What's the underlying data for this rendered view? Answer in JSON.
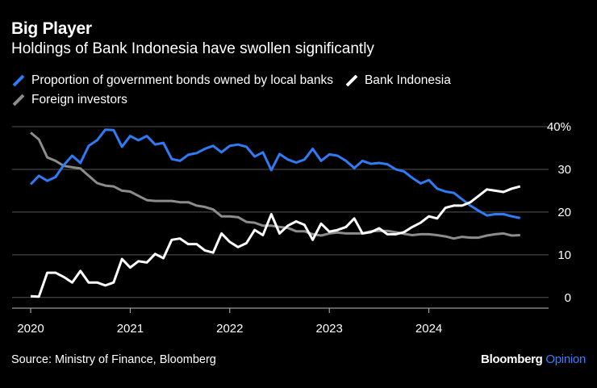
{
  "title": "Big Player",
  "subtitle": "Holdings of Bank Indonesia have swollen significantly",
  "source": "Source: Ministry of Finance, Bloomberg",
  "brand": {
    "name": "Bloomberg",
    "suffix": "Opinion"
  },
  "colors": {
    "local_banks": "#2f7bf5",
    "bank_indonesia": "#ffffff",
    "foreign": "#8c8c8c",
    "grid": "#555555",
    "background": "#000000"
  },
  "chart_data": {
    "type": "line",
    "title": "Big Player",
    "subtitle": "Holdings of Bank Indonesia have swollen significantly",
    "xlabel": "",
    "ylabel": "",
    "x_ticks": [
      "2020",
      "2021",
      "2022",
      "2023",
      "2024"
    ],
    "y_ticks": [
      0,
      10,
      20,
      30,
      40
    ],
    "y_tick_labels": [
      "0",
      "10",
      "20",
      "30",
      "40%"
    ],
    "ylim": [
      -2.5,
      40
    ],
    "xlim": [
      2020.0,
      2025.3
    ],
    "grid": true,
    "legend_placement": "top",
    "x": [
      2020.0,
      2020.083,
      2020.167,
      2020.25,
      2020.333,
      2020.417,
      2020.5,
      2020.583,
      2020.667,
      2020.75,
      2020.833,
      2020.917,
      2021.0,
      2021.083,
      2021.167,
      2021.25,
      2021.333,
      2021.417,
      2021.5,
      2021.583,
      2021.667,
      2021.75,
      2021.833,
      2021.917,
      2022.0,
      2022.083,
      2022.167,
      2022.25,
      2022.333,
      2022.417,
      2022.5,
      2022.583,
      2022.667,
      2022.75,
      2022.833,
      2022.917,
      2023.0,
      2023.083,
      2023.167,
      2023.25,
      2023.333,
      2023.417,
      2023.5,
      2023.583,
      2023.667,
      2023.75,
      2023.833,
      2023.917,
      2024.0,
      2024.083,
      2024.167,
      2024.25,
      2024.333,
      2024.417,
      2024.5,
      2024.583,
      2024.667,
      2024.75,
      2024.833,
      2024.917
    ],
    "series": [
      {
        "name": "Proportion of government bonds owned by local banks",
        "color": "#2f7bf5",
        "values": [
          26.5,
          28.5,
          27.3,
          28.2,
          31.0,
          33.2,
          31.5,
          35.5,
          36.8,
          39.3,
          39.2,
          35.3,
          37.8,
          36.8,
          37.8,
          35.8,
          36.2,
          32.4,
          32.0,
          33.4,
          33.8,
          34.8,
          35.5,
          34.0,
          35.5,
          35.8,
          35.3,
          33.0,
          34.0,
          29.8,
          33.6,
          32.3,
          31.6,
          32.3,
          34.8,
          32.0,
          33.5,
          33.2,
          32.0,
          30.3,
          32.0,
          31.3,
          31.5,
          31.2,
          30.0,
          29.5,
          28.0,
          26.7,
          27.5,
          25.5,
          24.8,
          24.5,
          23.0,
          21.5,
          20.3,
          19.2,
          19.5,
          19.5,
          19.0,
          18.6
        ]
      },
      {
        "name": "Bank Indonesia",
        "color": "#ffffff",
        "values": [
          0.3,
          0.2,
          5.8,
          5.8,
          4.8,
          3.5,
          6.2,
          3.5,
          3.5,
          2.8,
          3.5,
          9.0,
          7.0,
          8.5,
          8.2,
          10.2,
          9.2,
          13.5,
          13.8,
          12.5,
          12.5,
          11.0,
          10.5,
          15.0,
          13.0,
          11.8,
          12.7,
          15.8,
          14.6,
          19.5,
          15.0,
          16.8,
          17.8,
          17.0,
          13.5,
          17.3,
          15.4,
          15.8,
          16.5,
          18.5,
          15.0,
          15.3,
          16.2,
          14.8,
          14.8,
          15.3,
          16.5,
          17.5,
          19.0,
          18.5,
          21.0,
          21.5,
          21.5,
          22.3,
          23.8,
          25.3,
          25.0,
          24.7,
          25.5,
          26.0
        ]
      },
      {
        "name": "Foreign investors",
        "color": "#8c8c8c",
        "values": [
          38.6,
          37.0,
          32.8,
          32.0,
          30.8,
          30.5,
          30.2,
          28.5,
          26.8,
          26.2,
          26.0,
          25.0,
          24.8,
          23.8,
          22.8,
          22.6,
          22.6,
          22.6,
          22.3,
          22.3,
          21.5,
          21.2,
          20.6,
          19.0,
          19.0,
          18.8,
          17.7,
          17.5,
          16.8,
          16.8,
          16.5,
          16.3,
          15.5,
          15.5,
          14.8,
          14.5,
          15.0,
          15.2,
          15.0,
          15.0,
          15.0,
          15.5,
          15.6,
          15.6,
          15.3,
          14.9,
          14.6,
          14.8,
          14.8,
          14.6,
          14.3,
          13.8,
          14.2,
          14.0,
          14.0,
          14.5,
          14.8,
          15.0,
          14.5,
          14.6
        ]
      }
    ]
  }
}
